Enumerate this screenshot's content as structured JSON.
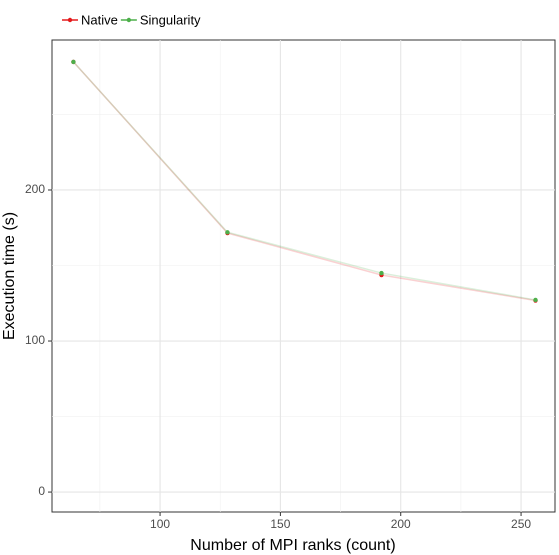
{
  "chart_data": {
    "type": "line",
    "x_label": "Number of MPI ranks (count)",
    "y_label": "Execution time (s)",
    "x": [
      64,
      128,
      192,
      256
    ],
    "series": [
      {
        "name": "Native",
        "color": "#e41a1c",
        "values": [
          284.8,
          171.5,
          143.7,
          126.8
        ]
      },
      {
        "name": "Singularity",
        "color": "#4daf4a",
        "values": [
          284.8,
          172.0,
          145.0,
          127.2
        ]
      }
    ],
    "xlim": [
      55.1,
      264.1
    ],
    "xticks": [
      100,
      150,
      200,
      250
    ],
    "xminor": [
      75,
      125,
      175,
      225
    ],
    "ylim": [
      -13.2,
      299.3
    ],
    "yticks": [
      0,
      100,
      200
    ],
    "yminor": [
      50,
      150,
      250
    ],
    "grid": true,
    "legend": "top-left"
  }
}
